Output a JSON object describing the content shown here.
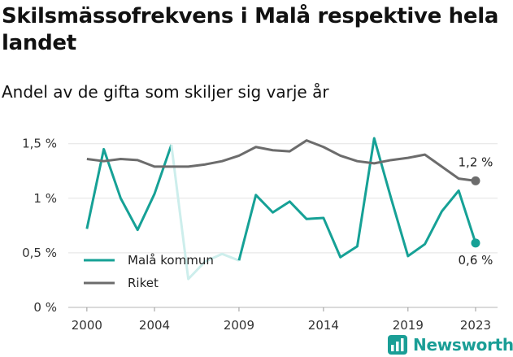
{
  "header": {
    "title": "Skilsmässofrekvens i Malå respektive hela landet",
    "subtitle": "Andel av de gifta som skiljer sig varje år"
  },
  "brand": {
    "name": "Newsworthy",
    "icon": "newsworthy-logo-icon",
    "color": "#1a9e96"
  },
  "chart_data": {
    "type": "line",
    "x": [
      2000,
      2001,
      2002,
      2003,
      2004,
      2005,
      2006,
      2007,
      2008,
      2009,
      2010,
      2011,
      2012,
      2013,
      2014,
      2015,
      2016,
      2017,
      2018,
      2019,
      2020,
      2021,
      2022,
      2023
    ],
    "xticks": [
      2000,
      2004,
      2009,
      2014,
      2019,
      2023
    ],
    "xtick_labels": [
      "2000",
      "2004",
      "2009",
      "2014",
      "2019",
      "2023"
    ],
    "xlim": [
      1998.9,
      2024.3
    ],
    "yticks": [
      0,
      0.5,
      1,
      1.5
    ],
    "ytick_labels": [
      "0 %",
      "0,5 %",
      "1 %",
      "1,5 %"
    ],
    "ylim": [
      0,
      1.55
    ],
    "grid": "horizontal",
    "legend_position": "bottom-left",
    "series": [
      {
        "name": "Malå kommun",
        "color": "#16a196",
        "faded_color": "#cdeeec",
        "values": [
          0.72,
          1.45,
          1.0,
          0.71,
          1.04,
          1.49,
          0.26,
          0.42,
          0.49,
          0.43,
          1.03,
          0.87,
          0.97,
          0.81,
          0.82,
          0.46,
          0.56,
          1.55,
          1.0,
          0.47,
          0.58,
          0.88,
          1.07,
          0.59
        ],
        "faded_from": 2006,
        "faded_to": 2009,
        "end_label": "0,6 %"
      },
      {
        "name": "Riket",
        "color": "#6c6c6c",
        "values": [
          1.36,
          1.34,
          1.36,
          1.35,
          1.29,
          1.29,
          1.29,
          1.31,
          1.34,
          1.39,
          1.47,
          1.44,
          1.43,
          1.53,
          1.47,
          1.39,
          1.34,
          1.32,
          1.35,
          1.37,
          1.4,
          1.29,
          1.18,
          1.16
        ],
        "end_label": "1,2 %"
      }
    ]
  }
}
